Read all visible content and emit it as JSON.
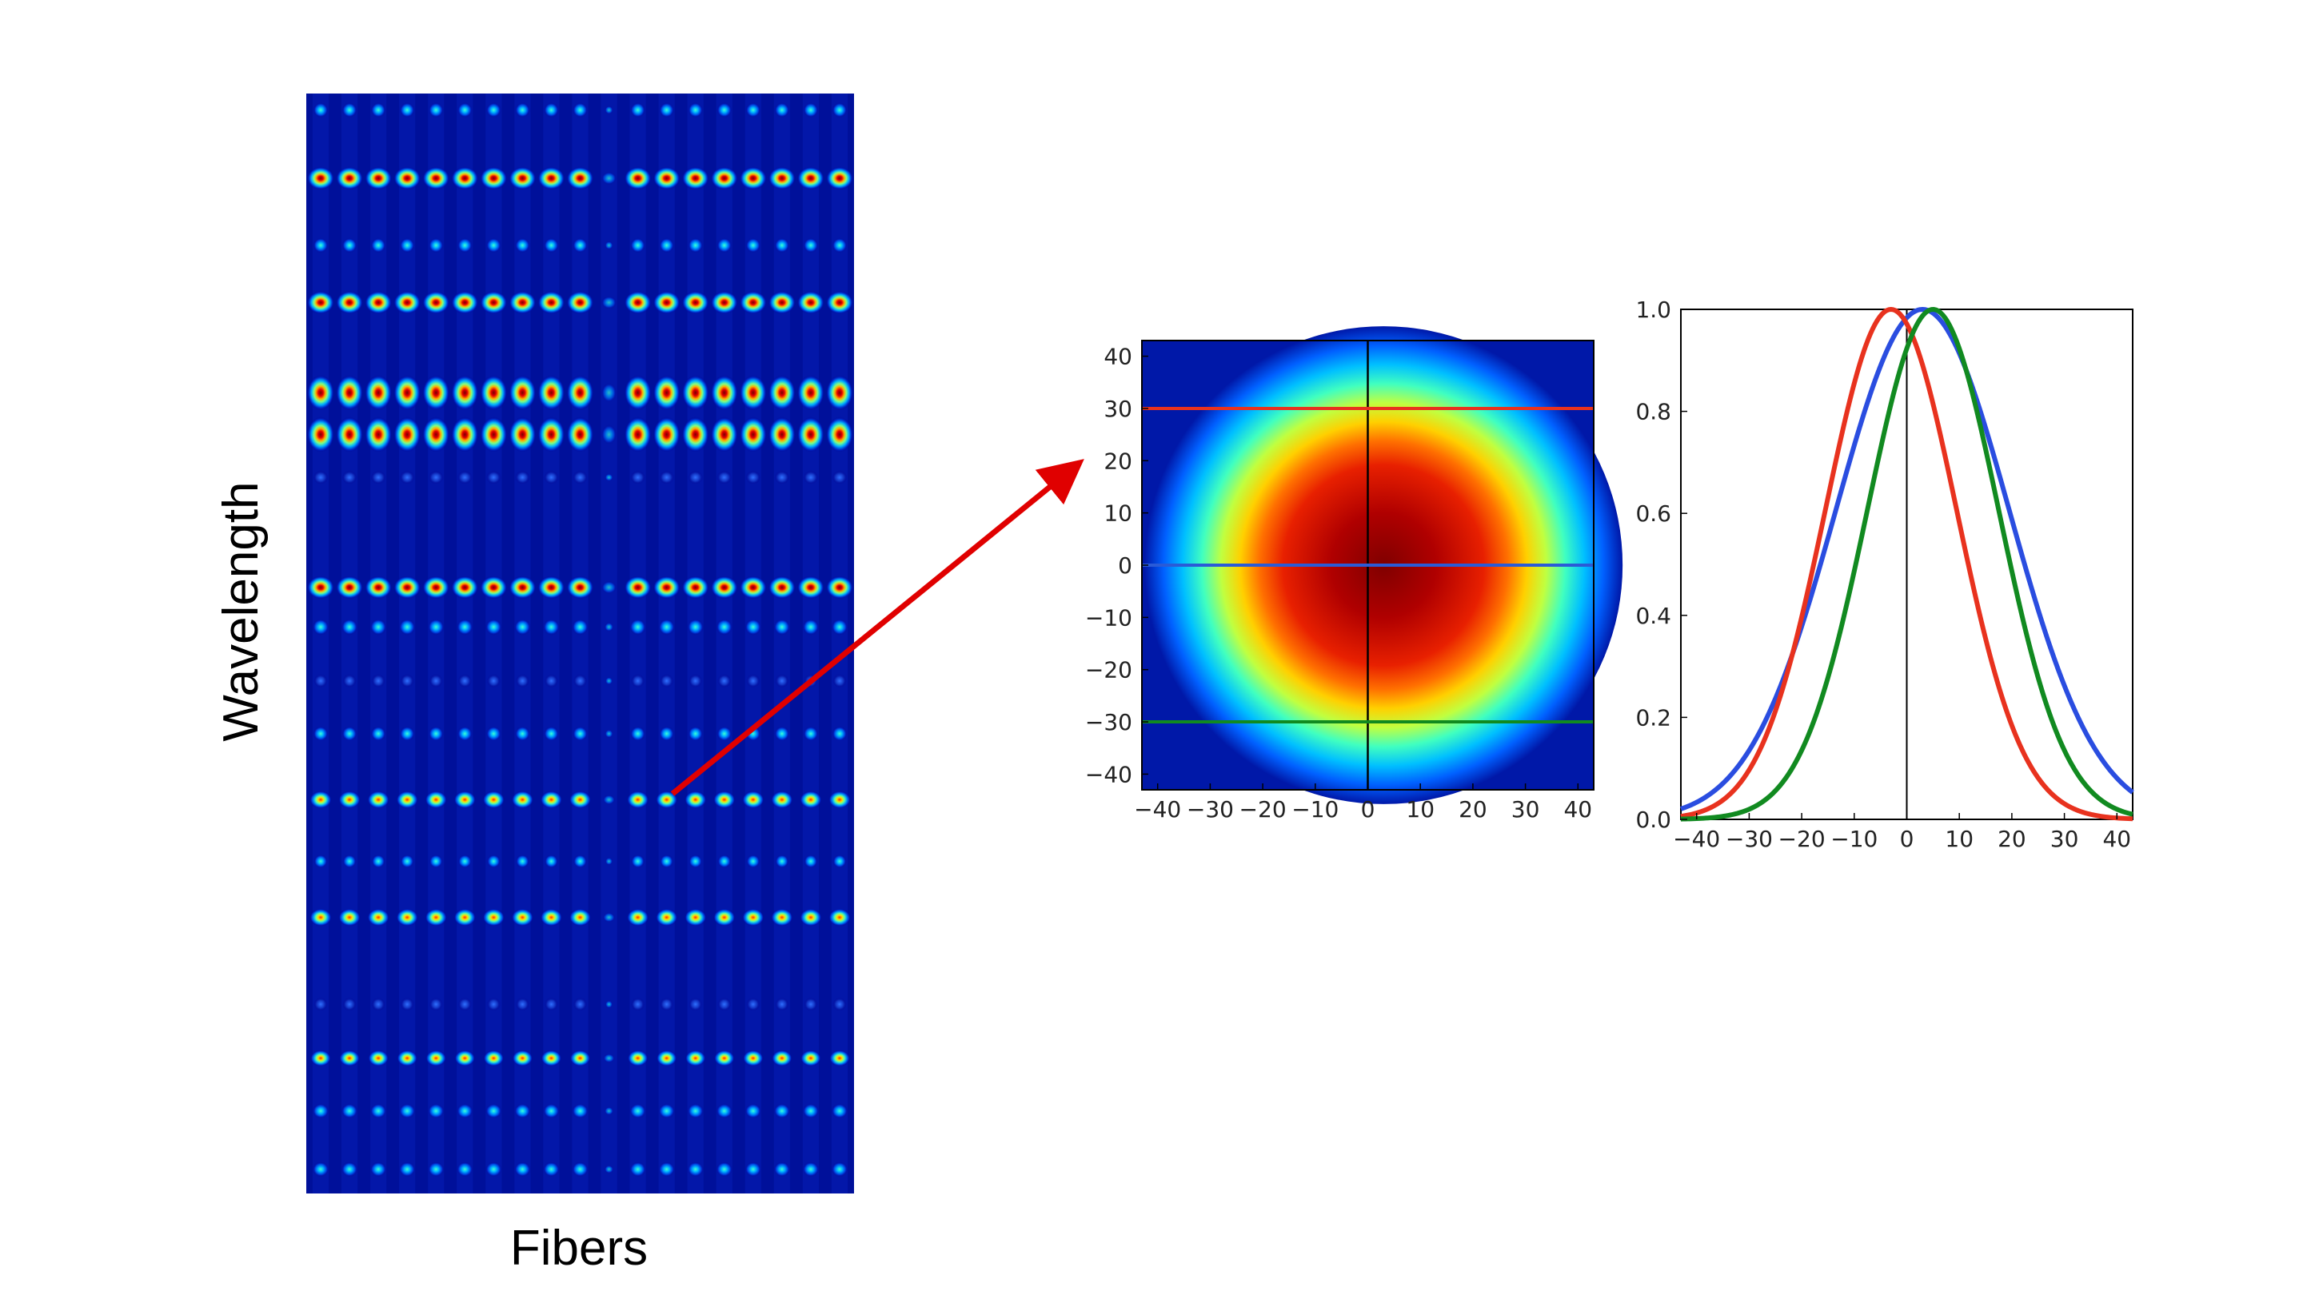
{
  "slide": {
    "ylabel": "Wavelength",
    "xlabel": "Fibers"
  },
  "chart_data": [
    {
      "type": "heatmap",
      "name": "fiber spectrum image",
      "fibers": 19,
      "missing_fiber_index": 10,
      "rows": [
        {
          "y_frac": 0.015,
          "intensity": 0.55,
          "w": 0.55,
          "h": 0.55
        },
        {
          "y_frac": 0.077,
          "intensity": 1.0,
          "w": 1.0,
          "h": 0.85
        },
        {
          "y_frac": 0.138,
          "intensity": 0.55,
          "w": 0.55,
          "h": 0.55
        },
        {
          "y_frac": 0.19,
          "intensity": 1.0,
          "w": 1.0,
          "h": 0.85
        },
        {
          "y_frac": 0.272,
          "intensity": 1.0,
          "w": 1.0,
          "h": 1.3
        },
        {
          "y_frac": 0.31,
          "intensity": 1.0,
          "w": 1.0,
          "h": 1.3
        },
        {
          "y_frac": 0.349,
          "intensity": 0.25,
          "w": 0.55,
          "h": 0.5
        },
        {
          "y_frac": 0.449,
          "intensity": 1.0,
          "w": 1.0,
          "h": 0.85
        },
        {
          "y_frac": 0.485,
          "intensity": 0.5,
          "w": 0.6,
          "h": 0.6
        },
        {
          "y_frac": 0.534,
          "intensity": 0.2,
          "w": 0.5,
          "h": 0.5
        },
        {
          "y_frac": 0.582,
          "intensity": 0.35,
          "w": 0.55,
          "h": 0.55
        },
        {
          "y_frac": 0.642,
          "intensity": 0.75,
          "w": 0.8,
          "h": 0.65
        },
        {
          "y_frac": 0.698,
          "intensity": 0.3,
          "w": 0.5,
          "h": 0.5
        },
        {
          "y_frac": 0.749,
          "intensity": 0.75,
          "w": 0.8,
          "h": 0.65
        },
        {
          "y_frac": 0.828,
          "intensity": 0.25,
          "w": 0.5,
          "h": 0.5
        },
        {
          "y_frac": 0.877,
          "intensity": 0.7,
          "w": 0.75,
          "h": 0.6
        },
        {
          "y_frac": 0.925,
          "intensity": 0.5,
          "w": 0.6,
          "h": 0.55
        },
        {
          "y_frac": 0.978,
          "intensity": 0.55,
          "w": 0.6,
          "h": 0.55
        }
      ],
      "highlight": {
        "row": 11,
        "fiber": 11
      }
    },
    {
      "type": "heatmap",
      "name": "PSF",
      "xlim": [
        -43,
        43
      ],
      "ylim": [
        -43,
        43
      ],
      "x_ticks": [
        -40,
        -30,
        -20,
        -10,
        0,
        10,
        20,
        30,
        40
      ],
      "y_ticks": [
        40,
        30,
        20,
        10,
        0,
        -10,
        -20,
        -30,
        -40
      ],
      "center": [
        3,
        0
      ],
      "radius": 26,
      "cuts": [
        {
          "y": 30,
          "color": "#e8321e"
        },
        {
          "y": 0,
          "color": "#2a5bd7"
        },
        {
          "y": -30,
          "color": "#118a20"
        }
      ],
      "vline_x": 0
    },
    {
      "type": "line",
      "xlim": [
        -43,
        43
      ],
      "ylim": [
        0,
        1
      ],
      "x_ticks": [
        -40,
        -30,
        -20,
        -10,
        0,
        10,
        20,
        30,
        40
      ],
      "y_ticks": [
        0.0,
        0.2,
        0.4,
        0.6,
        0.8,
        1.0
      ],
      "vline_x": 0,
      "series": [
        {
          "color": "#2a4de0",
          "center": 3,
          "sigma": 16.5
        },
        {
          "color": "#e8321e",
          "center": -3,
          "sigma": 12.5
        },
        {
          "color": "#118a20",
          "center": 5,
          "sigma": 12.5
        }
      ]
    }
  ],
  "arrow": {
    "color": "#e00000"
  }
}
